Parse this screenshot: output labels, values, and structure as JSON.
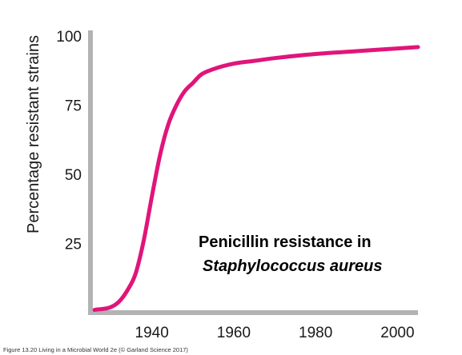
{
  "chart_data": {
    "type": "line",
    "xlabel": "",
    "ylabel": "Percentage resistant strains",
    "xlim": [
      1925,
      2005
    ],
    "ylim": [
      0,
      100
    ],
    "xticks": [
      1940,
      1960,
      1980,
      2000
    ],
    "xtick_labels": [
      "1940",
      "1960",
      "1980",
      "2000"
    ],
    "yticks": [
      25,
      50,
      75,
      100
    ],
    "ytick_labels": [
      "25",
      "50",
      "75",
      "100"
    ],
    "grid": false,
    "annotation": {
      "line1": "Penicillin resistance in",
      "line2": "Staphylococcus aureus"
    },
    "caption": "Figure 13.20  Living in a Microbial World 2e (© Garland Science 2017)",
    "series": [
      {
        "color": "#e0157a",
        "x": [
          1926,
          1930,
          1932,
          1934,
          1936,
          1938,
          1940,
          1942,
          1944,
          1946,
          1948,
          1950,
          1952,
          1955,
          1960,
          1965,
          1970,
          1980,
          1990,
          2000,
          2005
        ],
        "y": [
          1,
          2,
          4,
          8,
          14,
          26,
          42,
          57,
          68,
          75,
          80,
          83,
          86,
          88,
          90,
          91,
          92,
          93.5,
          94.5,
          95.5,
          96
        ]
      }
    ]
  },
  "colors": {
    "axis": "#b3b3b3",
    "line": "#e0157a"
  }
}
